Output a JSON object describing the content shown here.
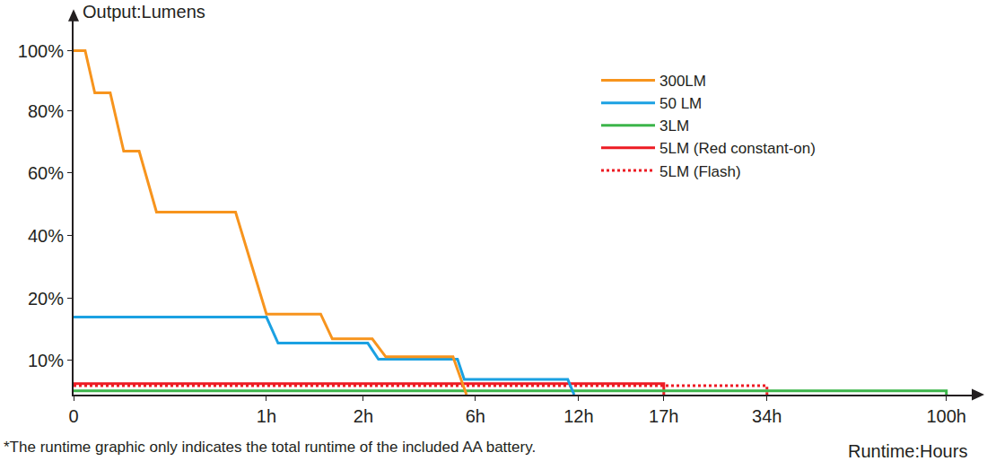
{
  "chart_data": {
    "type": "line",
    "y_label": "Output:Lumens",
    "x_label": "Runtime:Hours",
    "annotations": [
      "*The runtime graphic only indicates the total runtime of the included AA battery."
    ],
    "xlim": [
      0,
      110
    ],
    "xticks": [
      0,
      {
        "value": 1,
        "label": "1h"
      },
      {
        "value": 2,
        "label": "2h"
      },
      {
        "value": 6,
        "label": "6h"
      },
      {
        "value": 12,
        "label": "12h"
      },
      {
        "value": 17,
        "label": "17h"
      },
      {
        "value": 34,
        "label": "34h"
      },
      {
        "value": 100,
        "label": "100h"
      }
    ],
    "ylim": [
      0,
      110
    ],
    "yticks": [
      {
        "value": 10,
        "label": "10%"
      },
      {
        "value": 20,
        "label": "20%"
      },
      {
        "value": 40,
        "label": "40%"
      },
      {
        "value": 60,
        "label": "60%"
      },
      {
        "value": 80,
        "label": "80%"
      },
      {
        "value": 100,
        "label": "100%"
      }
    ],
    "grid": false,
    "legend": "upper right",
    "series": [
      {
        "name": "300LM",
        "color": "#f7941d",
        "line_style": "solid",
        "x": [
          0,
          0.06,
          0.11,
          0.19,
          0.26,
          0.34,
          0.43,
          0.84,
          1.0,
          1.56,
          1.68,
          2.32,
          2.8,
          5.2,
          5.68
        ],
        "values": [
          100,
          100,
          86,
          86,
          67,
          67,
          47.5,
          47.5,
          17.5,
          17.5,
          13.5,
          13.5,
          10.6,
          10.6,
          0
        ]
      },
      {
        "name": "50 LM",
        "color": "#1ba1e2",
        "line_style": "solid",
        "x": [
          0,
          1.0,
          1.12,
          2.16,
          2.54,
          5.36,
          5.6,
          11.37,
          11.74
        ],
        "values": [
          17,
          17,
          12.8,
          12.8,
          10.2,
          10.2,
          4.5,
          4.5,
          0
        ]
      },
      {
        "name": "3LM",
        "color": "#3cb54a",
        "line_style": "solid",
        "x": [
          0,
          100,
          100
        ],
        "values": [
          1.1,
          1.1,
          0
        ]
      },
      {
        "name": "5LM (Red constant-on)",
        "color": "#ed1c24",
        "line_style": "solid",
        "x": [
          0,
          17,
          17
        ],
        "values": [
          3.2,
          3.2,
          0
        ]
      },
      {
        "name": "5LM (Flash)",
        "color": "#ed1c24",
        "line_style": "dot",
        "x": [
          0,
          34,
          34
        ],
        "values": [
          2.6,
          2.6,
          0
        ]
      }
    ]
  }
}
